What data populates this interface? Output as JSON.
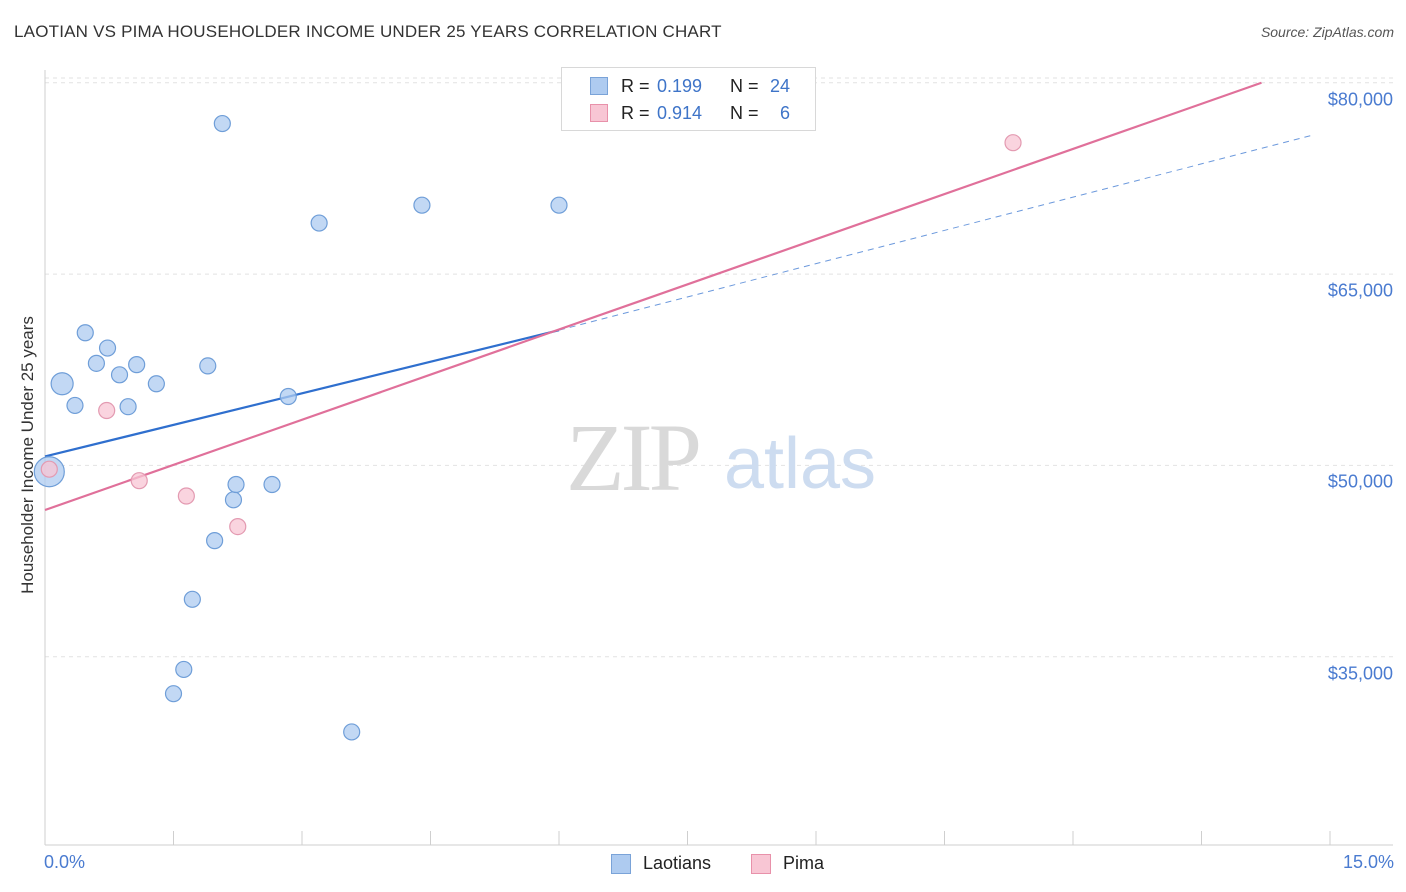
{
  "header": {
    "title": "LAOTIAN VS PIMA HOUSEHOLDER INCOME UNDER 25 YEARS CORRELATION CHART",
    "source": "Source: ZipAtlas.com"
  },
  "watermark": {
    "zip": "ZIP",
    "atlas": "atlas"
  },
  "stats": [
    {
      "r_label": "R =",
      "r_value": "0.199",
      "n_label": "N =",
      "n_value": "24",
      "color": "#aecbf0",
      "border": "#7aa3d8"
    },
    {
      "r_label": "R =",
      "r_value": "0.914",
      "n_label": "N =",
      "n_value": "6",
      "color": "#f8c6d4",
      "border": "#e891aa"
    }
  ],
  "legend": [
    {
      "label": "Laotians",
      "color": "#aecbf0",
      "border": "#7aa3d8"
    },
    {
      "label": "Pima",
      "color": "#f8c6d4",
      "border": "#e891aa"
    }
  ],
  "chart_data": {
    "type": "scatter",
    "title": "LAOTIAN VS PIMA HOUSEHOLDER INCOME UNDER 25 YEARS CORRELATION CHART",
    "xlabel": "",
    "ylabel": "Householder Income Under 25 years",
    "xlim": [
      0,
      15
    ],
    "ylim": [
      20000,
      81000
    ],
    "x_tick_labels": [
      "0.0%",
      "15.0%"
    ],
    "y_ticks": [
      35000,
      50000,
      65000,
      80000
    ],
    "y_tick_labels": [
      "$35,000",
      "$50,000",
      "$65,000",
      "$80,000"
    ],
    "grid": true,
    "series": [
      {
        "name": "Laotians",
        "color": "#aecbf0",
        "stroke": "#6f9ed8",
        "line_color": "#2f6fce",
        "points": [
          {
            "x": 0.05,
            "y": 49500,
            "size": "large"
          },
          {
            "x": 0.2,
            "y": 56400,
            "size": "medium"
          },
          {
            "x": 0.35,
            "y": 54700
          },
          {
            "x": 0.47,
            "y": 60400
          },
          {
            "x": 0.6,
            "y": 58000
          },
          {
            "x": 0.73,
            "y": 59200
          },
          {
            "x": 0.87,
            "y": 57100
          },
          {
            "x": 0.97,
            "y": 54600
          },
          {
            "x": 1.07,
            "y": 57900
          },
          {
            "x": 1.3,
            "y": 56400
          },
          {
            "x": 1.5,
            "y": 32100
          },
          {
            "x": 1.62,
            "y": 34000
          },
          {
            "x": 1.72,
            "y": 39500
          },
          {
            "x": 1.9,
            "y": 57800
          },
          {
            "x": 1.98,
            "y": 44100
          },
          {
            "x": 2.07,
            "y": 76800
          },
          {
            "x": 2.2,
            "y": 47300
          },
          {
            "x": 2.23,
            "y": 48500
          },
          {
            "x": 2.65,
            "y": 48500
          },
          {
            "x": 2.84,
            "y": 55400
          },
          {
            "x": 3.2,
            "y": 69000
          },
          {
            "x": 3.58,
            "y": 29100
          },
          {
            "x": 4.4,
            "y": 70400
          },
          {
            "x": 6.0,
            "y": 70400
          }
        ],
        "trend": {
          "x0": 0,
          "y0": 50700,
          "x1": 6.0,
          "y1": 60600,
          "dash_x1": 14.8,
          "dash_y1": 75900
        }
      },
      {
        "name": "Pima",
        "color": "#f8c6d4",
        "stroke": "#e39ab1",
        "line_color": "#e0709a",
        "points": [
          {
            "x": 0.05,
            "y": 49700
          },
          {
            "x": 0.72,
            "y": 54300
          },
          {
            "x": 1.1,
            "y": 48800
          },
          {
            "x": 1.65,
            "y": 47600
          },
          {
            "x": 2.25,
            "y": 45200
          },
          {
            "x": 11.3,
            "y": 75300
          }
        ],
        "trend": {
          "x0": 0,
          "y0": 46500,
          "x1": 14.2,
          "y1": 80000
        }
      }
    ]
  }
}
